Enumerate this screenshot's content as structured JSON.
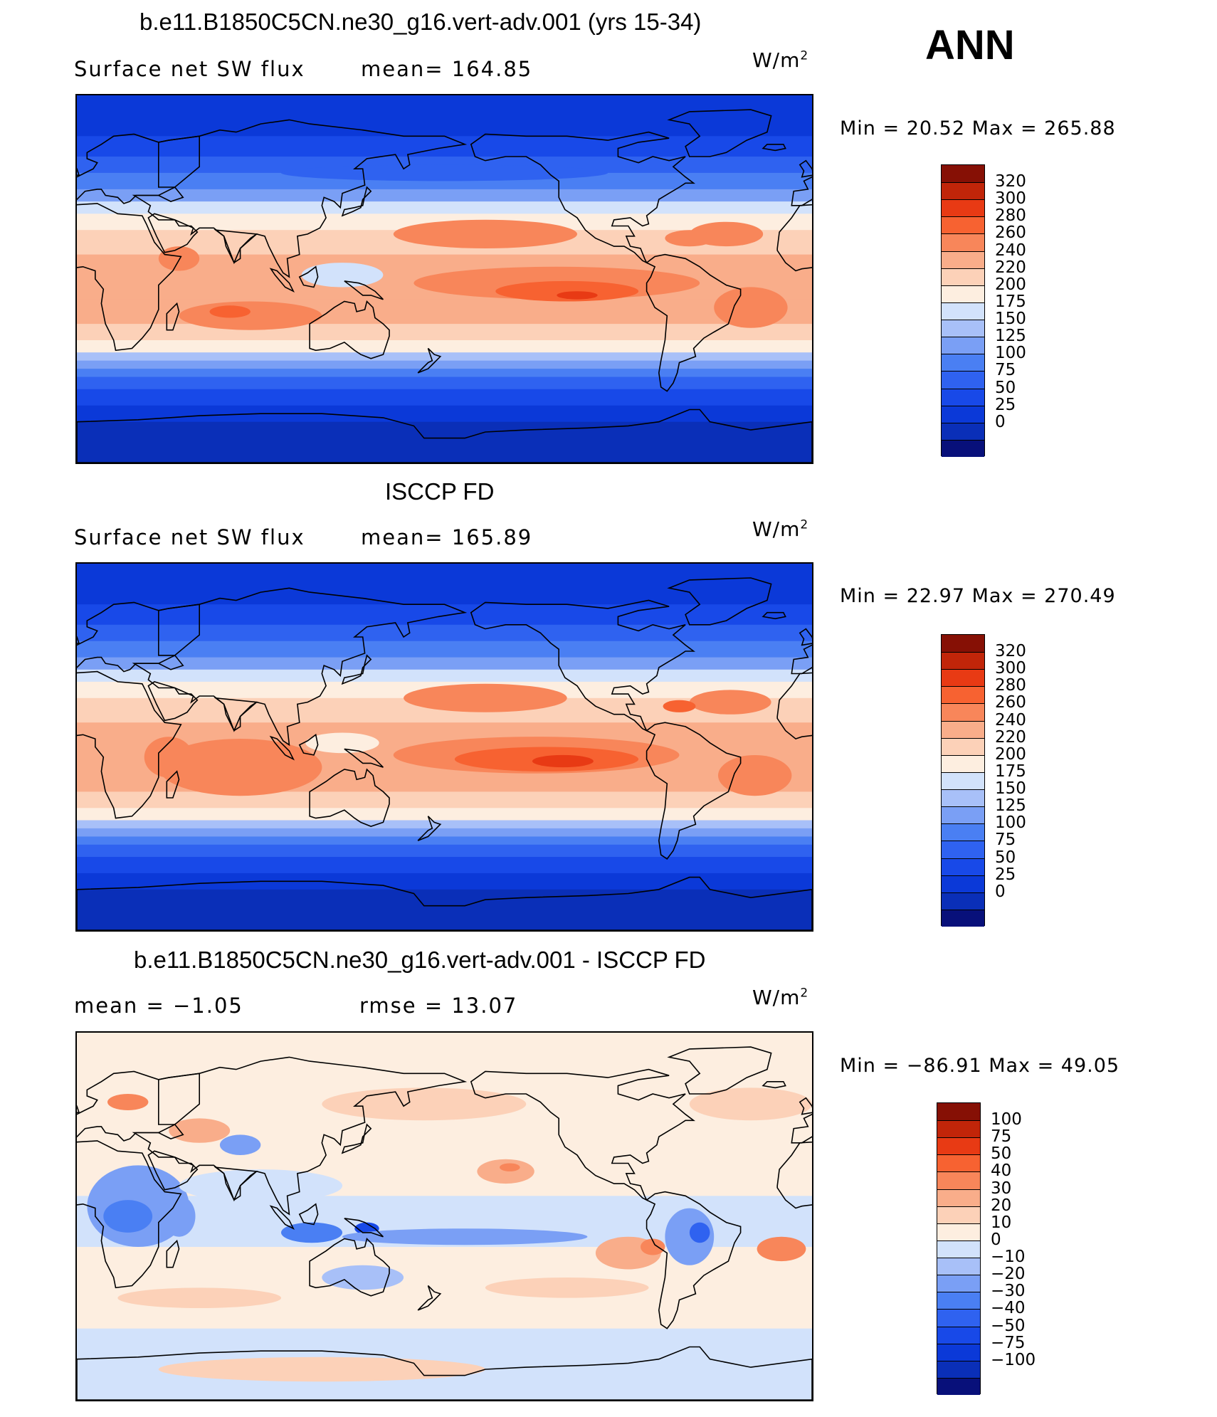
{
  "season": "ANN",
  "colors": {
    "abs_scale": [
      "#08107a",
      "#0a2fb8",
      "#0b39d8",
      "#1849e8",
      "#2f62f0",
      "#4a7ff3",
      "#7a9ff5",
      "#a8c0f8",
      "#d2e2fb",
      "#fdeee0",
      "#fcd1b8",
      "#f9ad8a",
      "#f8865a",
      "#f76231",
      "#e83a14",
      "#c12509",
      "#861005"
    ],
    "diff_scale": [
      "#08107a",
      "#0a2fb8",
      "#0b39d8",
      "#1849e8",
      "#2f62f0",
      "#4a7ff3",
      "#7a9ff5",
      "#a8c0f8",
      "#d2e2fb",
      "#fdeee0",
      "#fcd1b8",
      "#f9ad8a",
      "#f8865a",
      "#f76231",
      "#e83a14",
      "#c12509",
      "#861005"
    ]
  },
  "panels": [
    {
      "title": "b.e11.B1850C5CN.ne30_g16.vert-adv.001 (yrs 15-34)",
      "left_label": "Surface net SW flux",
      "mid_label": "mean=  164.85",
      "units_base": "W/m",
      "units_exp": "2",
      "minmax": "Min  =    20.52  Max  =  265.88",
      "field": "model",
      "colorbar_labels": [
        "320",
        "300",
        "280",
        "260",
        "240",
        "220",
        "200",
        "175",
        "150",
        "125",
        "100",
        "75",
        "50",
        "25",
        "0"
      ]
    },
    {
      "title": "ISCCP FD",
      "left_label": "Surface net SW flux",
      "mid_label": "mean=  165.89",
      "units_base": "W/m",
      "units_exp": "2",
      "minmax": "Min  =    22.97  Max  =  270.49",
      "field": "obs",
      "colorbar_labels": [
        "320",
        "300",
        "280",
        "260",
        "240",
        "220",
        "200",
        "175",
        "150",
        "125",
        "100",
        "75",
        "50",
        "25",
        "0"
      ]
    },
    {
      "title": "b.e11.B1850C5CN.ne30_g16.vert-adv.001 - ISCCP FD",
      "left_label": "mean  =    −1.05",
      "mid_label": "rmse  =    13.07",
      "units_base": "W/m",
      "units_exp": "2",
      "minmax": "Min  =  −86.91  Max  =    49.05",
      "field": "diff",
      "colorbar_labels": [
        "100",
        "75",
        "50",
        "40",
        "30",
        "20",
        "10",
        "0",
        "−10",
        "−20",
        "−30",
        "−40",
        "−50",
        "−75",
        "−100"
      ]
    }
  ]
}
